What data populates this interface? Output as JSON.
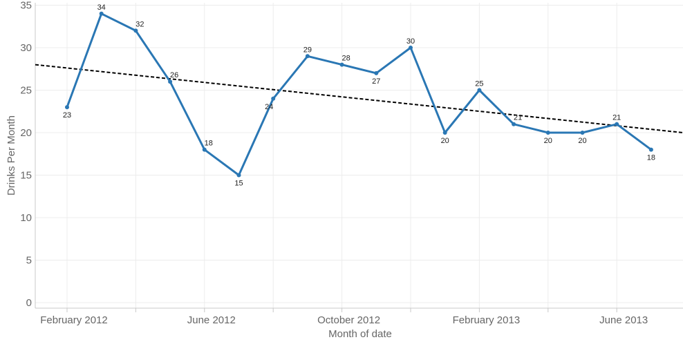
{
  "chart_data": {
    "type": "line",
    "xlabel": "Month of date",
    "ylabel": "Drinks Per Month",
    "ylim": [
      0,
      35
    ],
    "yticks": [
      0,
      5,
      10,
      15,
      20,
      25,
      30,
      35
    ],
    "x_tick_labels": [
      "February 2012",
      "June 2012",
      "October 2012",
      "February 2013",
      "June 2013"
    ],
    "categories": [
      "February 2012",
      "March 2012",
      "April 2012",
      "May 2012",
      "June 2012",
      "July 2012",
      "August 2012",
      "September 2012",
      "October 2012",
      "November 2012",
      "December 2012",
      "January 2013",
      "February 2013",
      "March 2013",
      "April 2013",
      "May 2013",
      "June 2013",
      "July 2013"
    ],
    "series": [
      {
        "values": [
          23,
          34,
          32,
          26,
          18,
          15,
          24,
          29,
          28,
          27,
          30,
          20,
          25,
          21,
          20,
          20,
          21,
          18
        ]
      }
    ],
    "trend_line": {
      "start": 28,
      "end": 20
    },
    "grid": true,
    "colors": {
      "line": "#2a77b4",
      "trend": "#000000",
      "grid": "#ececec",
      "axis": "#c8c8c8"
    }
  }
}
